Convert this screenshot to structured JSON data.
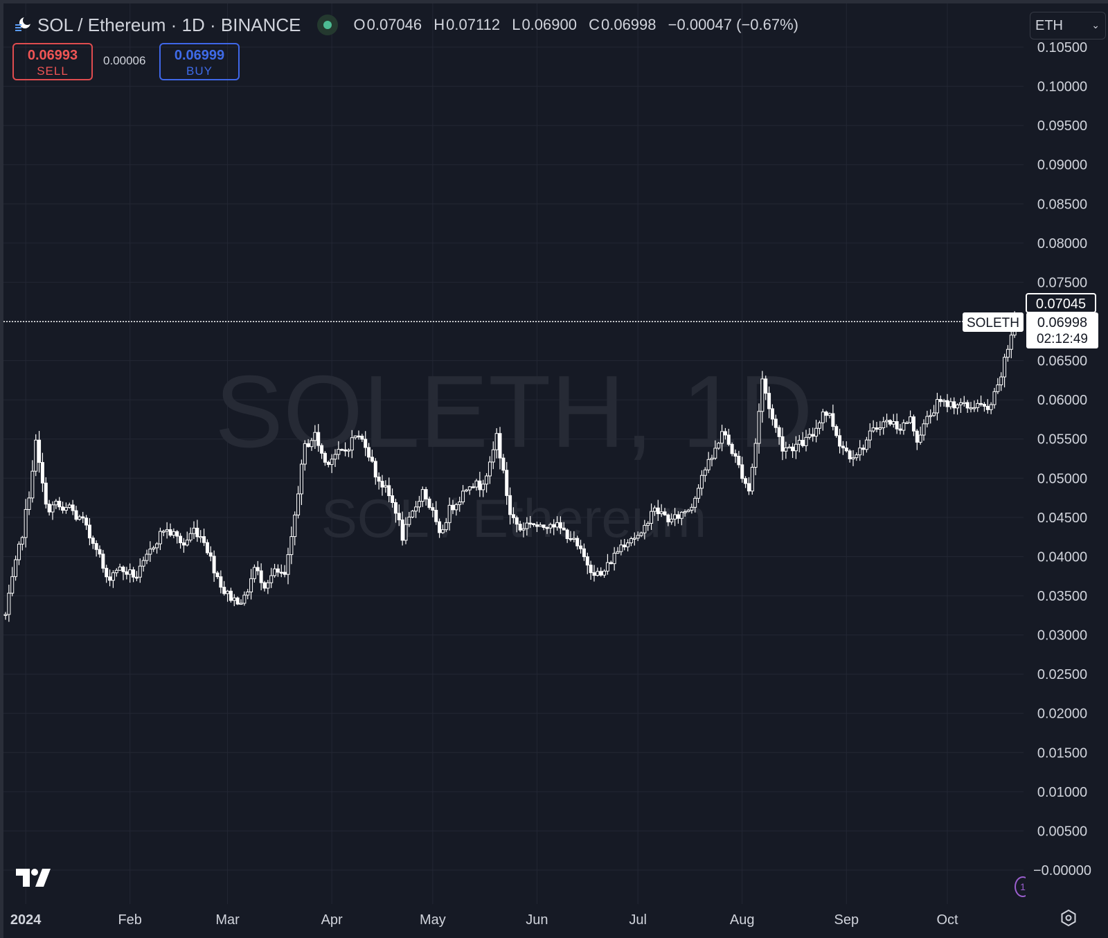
{
  "header": {
    "title": "SOL / Ethereum · 1D · BINANCE",
    "ohlc": [
      {
        "k": "O",
        "v": "0.07046"
      },
      {
        "k": "H",
        "v": "0.07112"
      },
      {
        "k": "L",
        "v": "0.06900"
      },
      {
        "k": "C",
        "v": "0.06998"
      },
      {
        "k": "",
        "v": "−0.00047 (−0.67%)"
      }
    ]
  },
  "trade": {
    "sell_price": "0.06993",
    "sell_label": "SELL",
    "spread": "0.00006",
    "buy_price": "0.06999",
    "buy_label": "BUY"
  },
  "currency": {
    "label": "ETH"
  },
  "watermark": {
    "line1": "SOLETH, 1D",
    "line2": "SOL / Ethereum"
  },
  "colors": {
    "background": "#161a25",
    "grid": "#232734",
    "text": "#d1d4dc",
    "candle": "#ffffff",
    "sell": "#f05555",
    "buy": "#3f6be8",
    "status": "#4dbb93"
  },
  "chart_data": {
    "type": "candlestick",
    "interval": "1D",
    "symbol": "SOLETH",
    "ylim": [
      0,
      0.105
    ],
    "yticks": [
      "0.10500",
      "0.10000",
      "0.09500",
      "0.09000",
      "0.08500",
      "0.08000",
      "0.07500",
      "0.07000",
      "0.06500",
      "0.06000",
      "0.05500",
      "0.05000",
      "0.04500",
      "0.04000",
      "0.03500",
      "0.03000",
      "0.02500",
      "0.02000",
      "0.01500",
      "0.01000",
      "0.00500",
      "−0.00000"
    ],
    "xticks": [
      "2024",
      "Feb",
      "Mar",
      "Apr",
      "May",
      "Jun",
      "Jul",
      "Aug",
      "Sep",
      "Oct"
    ],
    "x_start": "2023-12-26",
    "x_end": "2024-10-22",
    "close_path": [
      [
        "2023-12-26",
        0.0325
      ],
      [
        "2023-12-28",
        0.037
      ],
      [
        "2023-12-31",
        0.043
      ],
      [
        "2024-01-02",
        0.048
      ],
      [
        "2024-01-04",
        0.0545
      ],
      [
        "2024-01-06",
        0.049
      ],
      [
        "2024-01-08",
        0.0455
      ],
      [
        "2024-01-10",
        0.047
      ],
      [
        "2024-01-12",
        0.0455
      ],
      [
        "2024-01-14",
        0.0465
      ],
      [
        "2024-01-16",
        0.045
      ],
      [
        "2024-01-18",
        0.0445
      ],
      [
        "2024-01-20",
        0.0425
      ],
      [
        "2024-01-22",
        0.0415
      ],
      [
        "2024-01-25",
        0.037
      ],
      [
        "2024-01-28",
        0.0385
      ],
      [
        "2024-01-31",
        0.038
      ],
      [
        "2024-02-03",
        0.0375
      ],
      [
        "2024-02-05",
        0.039
      ],
      [
        "2024-02-08",
        0.0415
      ],
      [
        "2024-02-11",
        0.0435
      ],
      [
        "2024-02-14",
        0.0428
      ],
      [
        "2024-02-17",
        0.0415
      ],
      [
        "2024-02-20",
        0.0435
      ],
      [
        "2024-02-23",
        0.0422
      ],
      [
        "2024-02-26",
        0.0385
      ],
      [
        "2024-02-29",
        0.0355
      ],
      [
        "2024-03-03",
        0.0345
      ],
      [
        "2024-03-06",
        0.0345
      ],
      [
        "2024-03-09",
        0.0385
      ],
      [
        "2024-03-12",
        0.0365
      ],
      [
        "2024-03-15",
        0.038
      ],
      [
        "2024-03-18",
        0.0375
      ],
      [
        "2024-03-20",
        0.042
      ],
      [
        "2024-03-22",
        0.0485
      ],
      [
        "2024-03-24",
        0.054
      ],
      [
        "2024-03-27",
        0.0555
      ],
      [
        "2024-03-30",
        0.052
      ],
      [
        "2024-04-02",
        0.053
      ],
      [
        "2024-04-05",
        0.0535
      ],
      [
        "2024-04-08",
        0.0555
      ],
      [
        "2024-04-11",
        0.0545
      ],
      [
        "2024-04-14",
        0.0505
      ],
      [
        "2024-04-17",
        0.0485
      ],
      [
        "2024-04-20",
        0.046
      ],
      [
        "2024-04-22",
        0.0425
      ],
      [
        "2024-04-25",
        0.0455
      ],
      [
        "2024-04-28",
        0.0485
      ],
      [
        "2024-05-01",
        0.0455
      ],
      [
        "2024-05-03",
        0.0425
      ],
      [
        "2024-05-06",
        0.046
      ],
      [
        "2024-05-09",
        0.0475
      ],
      [
        "2024-05-12",
        0.0495
      ],
      [
        "2024-05-15",
        0.049
      ],
      [
        "2024-05-18",
        0.0515
      ],
      [
        "2024-05-20",
        0.0555
      ],
      [
        "2024-05-22",
        0.0505
      ],
      [
        "2024-05-24",
        0.0455
      ],
      [
        "2024-05-27",
        0.0435
      ],
      [
        "2024-05-30",
        0.0445
      ],
      [
        "2024-06-02",
        0.0435
      ],
      [
        "2024-06-05",
        0.0445
      ],
      [
        "2024-06-08",
        0.0435
      ],
      [
        "2024-06-11",
        0.0425
      ],
      [
        "2024-06-14",
        0.0405
      ],
      [
        "2024-06-17",
        0.0385
      ],
      [
        "2024-06-20",
        0.0375
      ],
      [
        "2024-06-23",
        0.0395
      ],
      [
        "2024-06-26",
        0.0415
      ],
      [
        "2024-06-29",
        0.0425
      ],
      [
        "2024-07-02",
        0.0425
      ],
      [
        "2024-07-05",
        0.046
      ],
      [
        "2024-07-08",
        0.0455
      ],
      [
        "2024-07-11",
        0.0445
      ],
      [
        "2024-07-14",
        0.0455
      ],
      [
        "2024-07-17",
        0.0465
      ],
      [
        "2024-07-20",
        0.0505
      ],
      [
        "2024-07-23",
        0.0525
      ],
      [
        "2024-07-26",
        0.056
      ],
      [
        "2024-07-29",
        0.0535
      ],
      [
        "2024-08-01",
        0.0505
      ],
      [
        "2024-08-03",
        0.0485
      ],
      [
        "2024-08-05",
        0.0545
      ],
      [
        "2024-08-07",
        0.0625
      ],
      [
        "2024-08-10",
        0.0575
      ],
      [
        "2024-08-13",
        0.054
      ],
      [
        "2024-08-16",
        0.054
      ],
      [
        "2024-08-19",
        0.0545
      ],
      [
        "2024-08-22",
        0.0555
      ],
      [
        "2024-08-25",
        0.0585
      ],
      [
        "2024-08-27",
        0.058
      ],
      [
        "2024-08-30",
        0.0545
      ],
      [
        "2024-09-02",
        0.053
      ],
      [
        "2024-09-05",
        0.0535
      ],
      [
        "2024-09-08",
        0.0555
      ],
      [
        "2024-09-11",
        0.057
      ],
      [
        "2024-09-14",
        0.0572
      ],
      [
        "2024-09-17",
        0.0565
      ],
      [
        "2024-09-20",
        0.0575
      ],
      [
        "2024-09-22",
        0.055
      ],
      [
        "2024-09-25",
        0.0575
      ],
      [
        "2024-09-28",
        0.0595
      ],
      [
        "2024-10-01",
        0.0595
      ],
      [
        "2024-10-04",
        0.0595
      ],
      [
        "2024-10-07",
        0.059
      ],
      [
        "2024-10-10",
        0.0595
      ],
      [
        "2024-10-13",
        0.0585
      ],
      [
        "2024-10-16",
        0.0615
      ],
      [
        "2024-10-19",
        0.0665
      ],
      [
        "2024-10-21",
        0.0705
      ],
      [
        "2024-10-22",
        0.06998
      ]
    ],
    "last_bar": {
      "date": "2024-10-22",
      "open": 0.07046,
      "high": 0.07112,
      "low": 0.069,
      "close": 0.06998
    },
    "price_labels": {
      "high_marker": "0.07045",
      "symbol_tag": "SOLETH",
      "last_price": "0.06998",
      "countdown": "02:12:49"
    },
    "grid": true
  }
}
